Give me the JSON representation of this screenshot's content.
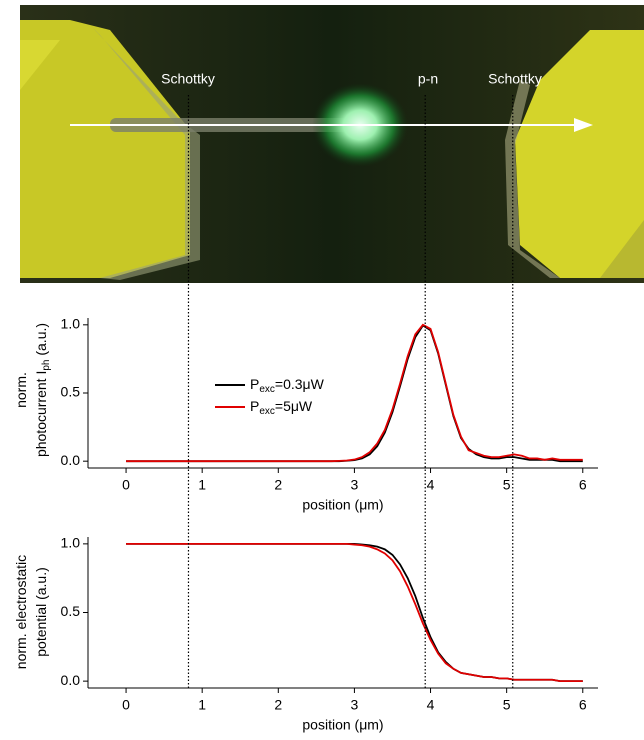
{
  "image": {
    "labels": [
      "Schottky",
      "p-n",
      "Schottky"
    ]
  },
  "markers": [
    0.82,
    3.93,
    5.08
  ],
  "chart_data": [
    {
      "type": "line",
      "ylabel": [
        "norm.",
        "photocurrent I"
      ],
      "ylabel_subscript": "ph",
      "ylabel_suffix": " (a.u.)",
      "xlabel": "position (μm)",
      "xlim": [
        -0.5,
        6.2
      ],
      "xticks": [
        0,
        1,
        2,
        3,
        4,
        5,
        6
      ],
      "ylim": [
        -0.05,
        1.05
      ],
      "yticks": [
        {
          "value": 0,
          "label": "0.0"
        },
        {
          "value": 0.5,
          "label": "0.5"
        },
        {
          "value": 1,
          "label": "1.0"
        }
      ],
      "x": [
        0,
        0.1,
        0.2,
        0.3,
        0.4,
        0.5,
        0.6,
        0.7,
        0.8,
        0.9,
        1,
        1.1,
        1.2,
        1.3,
        1.4,
        1.5,
        1.6,
        1.7,
        1.8,
        1.9,
        2,
        2.1,
        2.2,
        2.3,
        2.4,
        2.5,
        2.6,
        2.7,
        2.8,
        2.9,
        3,
        3.1,
        3.2,
        3.3,
        3.4,
        3.5,
        3.6,
        3.7,
        3.8,
        3.9,
        4,
        4.1,
        4.2,
        4.3,
        4.4,
        4.5,
        4.6,
        4.7,
        4.8,
        4.9,
        5,
        5.1,
        5.2,
        5.3,
        5.4,
        5.5,
        5.6,
        5.7,
        5.8,
        5.9,
        6
      ],
      "series": [
        {
          "name": "P",
          "name_subscript": "exc",
          "name_suffix": "=0.3μW",
          "color": "#000000",
          "values": [
            0,
            0,
            0,
            0,
            0,
            0,
            0,
            0,
            0,
            0,
            0,
            0,
            0,
            0,
            0,
            0,
            0,
            0,
            0,
            0,
            0,
            0,
            0,
            0,
            0,
            0,
            0,
            0,
            0,
            0.003,
            0.008,
            0.02,
            0.05,
            0.11,
            0.21,
            0.36,
            0.55,
            0.75,
            0.91,
            0.995,
            0.96,
            0.79,
            0.56,
            0.33,
            0.17,
            0.09,
            0.05,
            0.03,
            0.02,
            0.02,
            0.03,
            0.03,
            0.02,
            0.01,
            0.01,
            0.01,
            0.01,
            0,
            0,
            0,
            0
          ]
        },
        {
          "name": "P",
          "name_subscript": "exc",
          "name_suffix": "=5μW",
          "color": "#e00000",
          "values": [
            0,
            0,
            0,
            0,
            0,
            0,
            0,
            0,
            0,
            0,
            0,
            0,
            0,
            0,
            0,
            0,
            0,
            0,
            0,
            0,
            0,
            0,
            0,
            0,
            0,
            0,
            0,
            0,
            0.002,
            0.005,
            0.012,
            0.03,
            0.065,
            0.13,
            0.23,
            0.38,
            0.57,
            0.77,
            0.93,
            1.0,
            0.97,
            0.8,
            0.57,
            0.34,
            0.18,
            0.08,
            0.06,
            0.04,
            0.03,
            0.03,
            0.04,
            0.05,
            0.04,
            0.02,
            0.02,
            0.01,
            0.02,
            0.01,
            0.01,
            0.01,
            0.01
          ]
        }
      ]
    },
    {
      "type": "line",
      "ylabel": [
        "norm. electrostatic",
        "potential (a.u.)"
      ],
      "xlabel": "position (μm)",
      "xlim": [
        -0.5,
        6.2
      ],
      "xticks": [
        0,
        1,
        2,
        3,
        4,
        5,
        6
      ],
      "ylim": [
        -0.05,
        1.05
      ],
      "yticks": [
        {
          "value": 0,
          "label": "0.0"
        },
        {
          "value": 0.5,
          "label": "0.5"
        },
        {
          "value": 1,
          "label": "1.0"
        }
      ],
      "x": [
        0,
        0.1,
        0.2,
        0.3,
        0.4,
        0.5,
        0.6,
        0.7,
        0.8,
        0.9,
        1,
        1.1,
        1.2,
        1.3,
        1.4,
        1.5,
        1.6,
        1.7,
        1.8,
        1.9,
        2,
        2.1,
        2.2,
        2.3,
        2.4,
        2.5,
        2.6,
        2.7,
        2.8,
        2.9,
        3,
        3.1,
        3.2,
        3.3,
        3.4,
        3.5,
        3.6,
        3.7,
        3.8,
        3.9,
        4,
        4.1,
        4.2,
        4.3,
        4.4,
        4.5,
        4.6,
        4.7,
        4.8,
        4.9,
        5,
        5.1,
        5.2,
        5.3,
        5.4,
        5.5,
        5.6,
        5.7,
        5.8,
        5.9,
        6
      ],
      "series": [
        {
          "color": "#000000",
          "values": [
            1,
            1,
            1,
            1,
            1,
            1,
            1,
            1,
            1,
            1,
            1,
            1,
            1,
            1,
            1,
            1,
            1,
            1,
            1,
            1,
            1,
            1,
            1,
            1,
            1,
            1,
            1,
            1,
            1,
            1,
            1,
            0.995,
            0.99,
            0.98,
            0.96,
            0.92,
            0.85,
            0.75,
            0.62,
            0.46,
            0.32,
            0.21,
            0.14,
            0.09,
            0.06,
            0.05,
            0.04,
            0.03,
            0.03,
            0.02,
            0.02,
            0.01,
            0.01,
            0.01,
            0.01,
            0.01,
            0.01,
            0,
            0,
            0,
            0
          ]
        },
        {
          "color": "#e00000",
          "values": [
            1,
            1,
            1,
            1,
            1,
            1,
            1,
            1,
            1,
            1,
            1,
            1,
            1,
            1,
            1,
            1,
            1,
            1,
            1,
            1,
            1,
            1,
            1,
            1,
            1,
            1,
            1,
            1,
            1,
            1,
            0.995,
            0.99,
            0.98,
            0.96,
            0.93,
            0.88,
            0.8,
            0.69,
            0.56,
            0.42,
            0.3,
            0.2,
            0.13,
            0.09,
            0.06,
            0.05,
            0.04,
            0.03,
            0.03,
            0.02,
            0.02,
            0.01,
            0.01,
            0.01,
            0.01,
            0.01,
            0.01,
            0,
            0,
            0,
            0
          ]
        }
      ]
    }
  ]
}
